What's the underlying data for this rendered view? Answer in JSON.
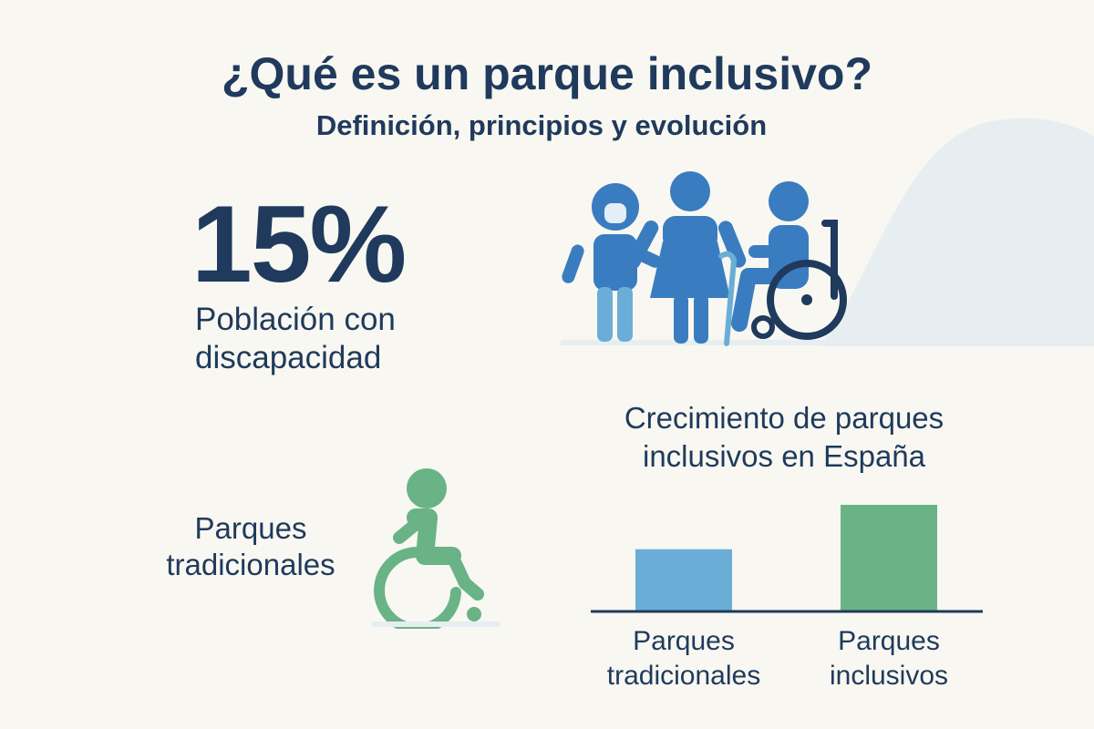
{
  "header": {
    "title": "¿Qué es un parque inclusivo?",
    "subtitle": "Definición, principios y evolución"
  },
  "stat": {
    "value": "15%",
    "label": "Población con discapacidad"
  },
  "left_section": {
    "label": "Parques tradicionales"
  },
  "icons": [
    "child-icon",
    "elderly-person-with-cane-icon",
    "wheelchair-user-icon",
    "green-wheelchair-icon"
  ],
  "colors": {
    "background": "#f8f7f1",
    "text": "#1f3a5c",
    "blue": "#3a7cc0",
    "light_blue": "#6aaed8",
    "green": "#69b386",
    "hill": "#e6eef1"
  },
  "chart_data": {
    "type": "bar",
    "title": "Crecimiento de parques inclusivos en España",
    "categories": [
      "Parques tradicionales",
      "Parques inclusivos"
    ],
    "values": [
      0.58,
      1.0
    ],
    "bar_colors": [
      "#6aaed8",
      "#69b386"
    ],
    "grid": false,
    "legend": "none"
  }
}
